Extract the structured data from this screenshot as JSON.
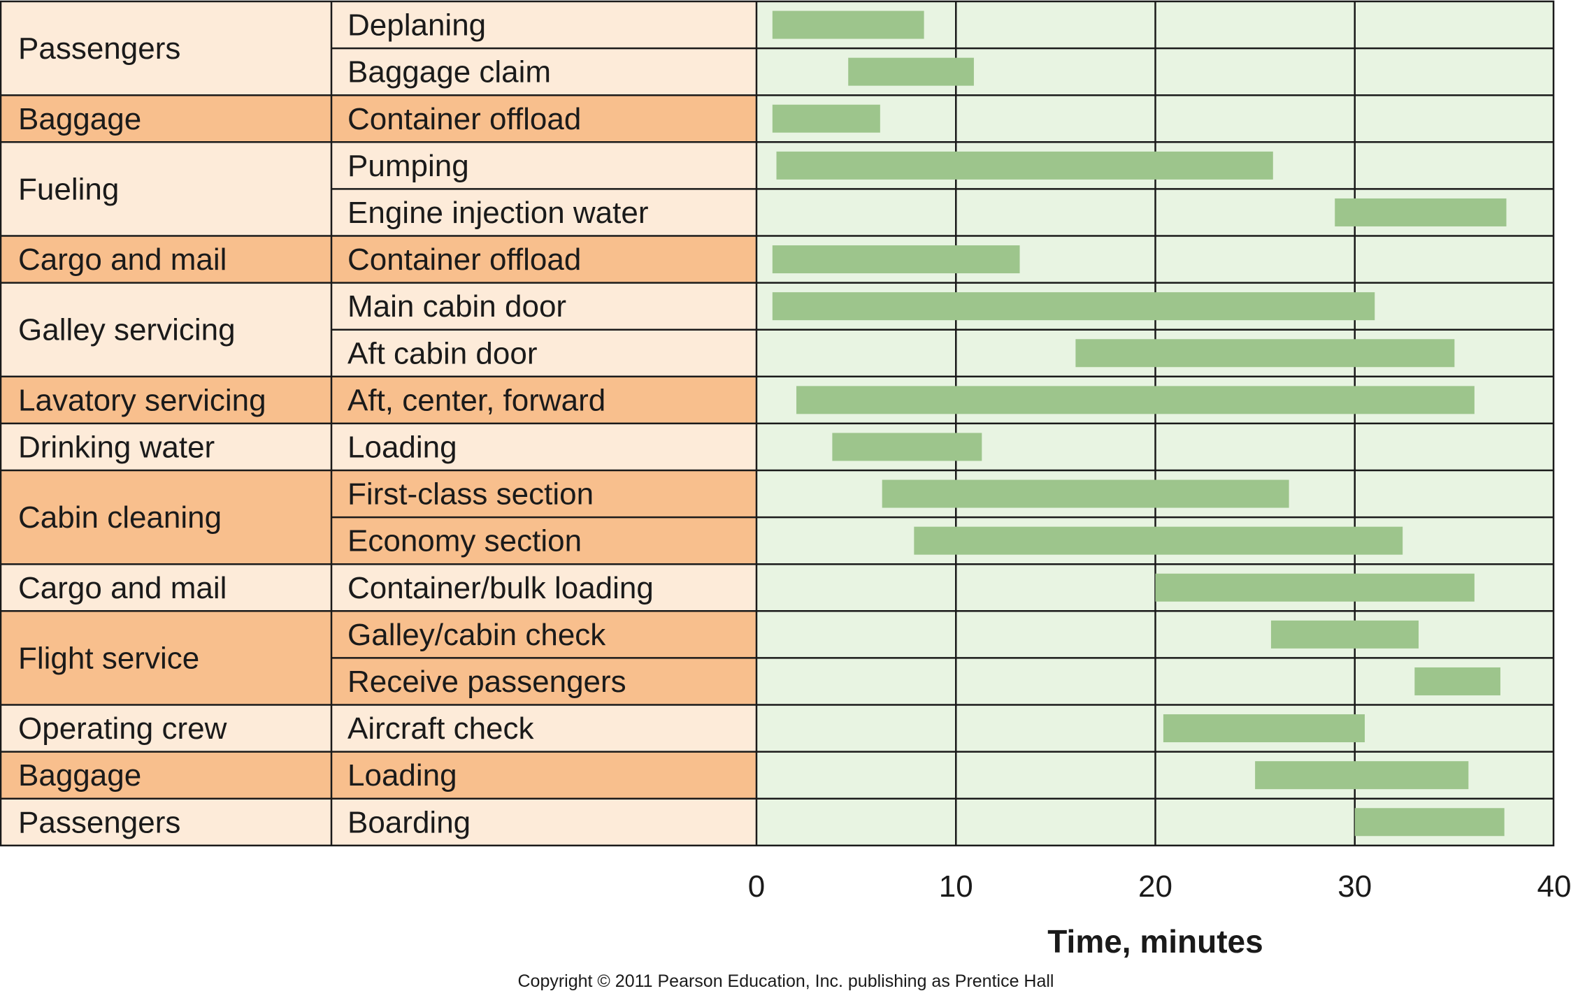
{
  "chart_data": {
    "type": "bar",
    "subtype": "gantt",
    "xlabel": "Time, minutes",
    "xlim": [
      0,
      40
    ],
    "xticks": [
      0,
      10,
      20,
      30,
      40
    ],
    "grid": true,
    "colors": {
      "light_row": "#fdebd9",
      "dark_row": "#f8bf8d",
      "plot_bg": "#e8f4e2",
      "bar": "#9dc58c",
      "grid": "#1a1a1a"
    },
    "groups": [
      {
        "name": "Passengers",
        "shade": "light",
        "tasks": [
          {
            "name": "Deplaning",
            "start": 0.8,
            "end": 8.4
          },
          {
            "name": "Baggage claim",
            "start": 4.6,
            "end": 10.9
          }
        ]
      },
      {
        "name": "Baggage",
        "shade": "dark",
        "tasks": [
          {
            "name": "Container offload",
            "start": 0.8,
            "end": 6.2
          }
        ]
      },
      {
        "name": "Fueling",
        "shade": "light",
        "tasks": [
          {
            "name": "Pumping",
            "start": 1.0,
            "end": 25.9
          },
          {
            "name": "Engine injection water",
            "start": 29.0,
            "end": 37.6
          }
        ]
      },
      {
        "name": "Cargo and mail",
        "shade": "dark",
        "tasks": [
          {
            "name": "Container offload",
            "start": 0.8,
            "end": 13.2
          }
        ]
      },
      {
        "name": "Galley servicing",
        "shade": "light",
        "tasks": [
          {
            "name": "Main cabin door",
            "start": 0.8,
            "end": 31.0
          },
          {
            "name": "Aft cabin door",
            "start": 16.0,
            "end": 35.0
          }
        ]
      },
      {
        "name": "Lavatory servicing",
        "shade": "dark",
        "tasks": [
          {
            "name": "Aft, center, forward",
            "start": 2.0,
            "end": 36.0
          }
        ]
      },
      {
        "name": "Drinking water",
        "shade": "light",
        "tasks": [
          {
            "name": "Loading",
            "start": 3.8,
            "end": 11.3
          }
        ]
      },
      {
        "name": "Cabin cleaning",
        "shade": "dark",
        "tasks": [
          {
            "name": "First-class section",
            "start": 6.3,
            "end": 26.7
          },
          {
            "name": "Economy section",
            "start": 7.9,
            "end": 32.4
          }
        ]
      },
      {
        "name": "Cargo and mail",
        "shade": "light",
        "tasks": [
          {
            "name": "Container/bulk loading",
            "start": 20.0,
            "end": 36.0
          }
        ]
      },
      {
        "name": "Flight service",
        "shade": "dark",
        "tasks": [
          {
            "name": "Galley/cabin check",
            "start": 25.8,
            "end": 33.2
          },
          {
            "name": "Receive passengers",
            "start": 33.0,
            "end": 37.3
          }
        ]
      },
      {
        "name": "Operating crew",
        "shade": "light",
        "tasks": [
          {
            "name": "Aircraft check",
            "start": 20.4,
            "end": 30.5
          }
        ]
      },
      {
        "name": "Baggage",
        "shade": "dark",
        "tasks": [
          {
            "name": "Loading",
            "start": 25.0,
            "end": 35.7
          }
        ]
      },
      {
        "name": "Passengers",
        "shade": "light",
        "tasks": [
          {
            "name": "Boarding",
            "start": 30.0,
            "end": 37.5
          }
        ]
      }
    ]
  },
  "copyright": "Copyright © 2011 Pearson Education, Inc. publishing as Prentice Hall"
}
